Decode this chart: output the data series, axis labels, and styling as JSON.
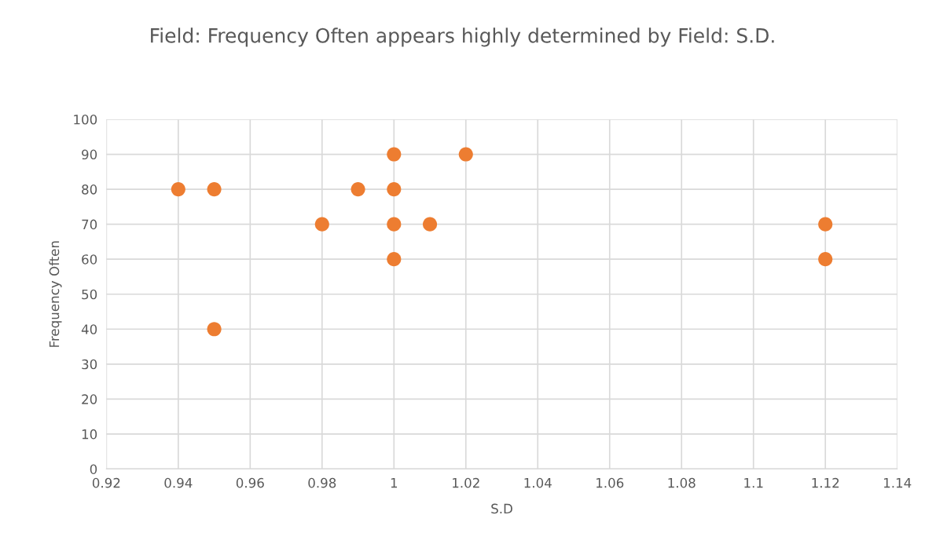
{
  "chart_data": {
    "type": "scatter",
    "title": "Field: Frequency Often appears highly determined by Field: S.D.",
    "xlabel": "S.D",
    "ylabel": "Frequency Often",
    "series": [
      {
        "color": "#ed7d31",
        "x": [
          0.94,
          0.95,
          0.95,
          0.98,
          0.99,
          1,
          1,
          1,
          1,
          1.01,
          1.02,
          1.12,
          1.12
        ],
        "values": [
          80,
          80,
          40,
          70,
          80,
          90,
          80,
          70,
          60,
          70,
          90,
          70,
          60
        ]
      }
    ],
    "xlim": [
      0.92,
      1.14
    ],
    "xticks": [
      0.92,
      0.94,
      0.96,
      0.98,
      1,
      1.02,
      1.04,
      1.06,
      1.08,
      1.1,
      1.12,
      1.14
    ],
    "ylim": [
      0,
      100
    ],
    "yticks": [
      0,
      10,
      20,
      30,
      40,
      50,
      60,
      70,
      80,
      90,
      100
    ],
    "grid": true,
    "marker": "circle"
  }
}
